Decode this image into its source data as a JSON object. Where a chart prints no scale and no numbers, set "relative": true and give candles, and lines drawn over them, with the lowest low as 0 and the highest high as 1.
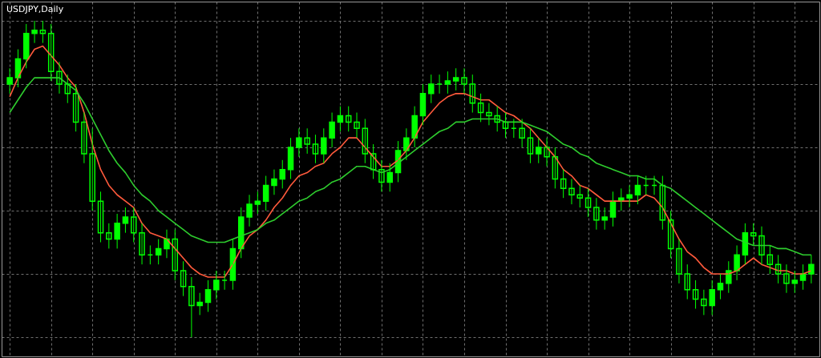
{
  "chart_data": {
    "type": "candlestick",
    "title": "USDJPY,Daily",
    "relative": true,
    "grid": true,
    "color": "#00ff00",
    "categories": [
      null,
      null,
      null,
      null,
      null,
      null,
      null,
      null,
      null,
      null,
      null,
      null,
      null,
      null,
      null,
      null,
      null,
      null,
      null,
      null,
      null,
      null,
      null,
      null,
      null,
      null,
      null,
      null,
      null,
      null,
      null,
      null,
      null,
      null,
      null,
      null,
      null,
      null,
      null,
      null,
      null,
      null,
      null,
      null,
      null,
      null,
      null,
      null,
      null,
      null,
      null,
      null,
      null,
      null,
      null,
      null,
      null,
      null,
      null,
      null,
      null,
      null,
      null,
      null,
      null,
      null,
      null,
      null,
      null,
      null,
      null,
      null,
      null,
      null,
      null,
      null,
      null,
      null,
      null,
      null,
      null,
      null,
      null,
      null,
      null,
      null,
      null,
      null,
      null,
      null,
      null,
      null,
      null,
      null,
      null,
      null,
      null,
      null
    ],
    "ohlc": [
      [
        0.8,
        0.85,
        0.77,
        0.82
      ],
      [
        0.82,
        0.91,
        0.79,
        0.88
      ],
      [
        0.88,
        0.99,
        0.85,
        0.96
      ],
      [
        0.96,
        1.0,
        0.93,
        0.97
      ],
      [
        0.97,
        1.0,
        0.93,
        0.96
      ],
      [
        0.96,
        0.99,
        0.81,
        0.84
      ],
      [
        0.84,
        0.87,
        0.77,
        0.8
      ],
      [
        0.8,
        0.83,
        0.74,
        0.77
      ],
      [
        0.77,
        0.8,
        0.65,
        0.68
      ],
      [
        0.68,
        0.71,
        0.55,
        0.58
      ],
      [
        0.58,
        0.66,
        0.4,
        0.43
      ],
      [
        0.43,
        0.46,
        0.3,
        0.33
      ],
      [
        0.33,
        0.36,
        0.28,
        0.31
      ],
      [
        0.31,
        0.39,
        0.28,
        0.36
      ],
      [
        0.36,
        0.41,
        0.33,
        0.38
      ],
      [
        0.38,
        0.41,
        0.3,
        0.33
      ],
      [
        0.33,
        0.36,
        0.23,
        0.26
      ],
      [
        0.26,
        0.29,
        0.23,
        0.26
      ],
      [
        0.26,
        0.31,
        0.23,
        0.28
      ],
      [
        0.28,
        0.34,
        0.25,
        0.31
      ],
      [
        0.31,
        0.34,
        0.18,
        0.21
      ],
      [
        0.21,
        0.24,
        0.13,
        0.16
      ],
      [
        0.16,
        0.19,
        0.0,
        0.1
      ],
      [
        0.1,
        0.14,
        0.07,
        0.11
      ],
      [
        0.11,
        0.18,
        0.08,
        0.15
      ],
      [
        0.15,
        0.21,
        0.12,
        0.18
      ],
      [
        0.18,
        0.21,
        0.15,
        0.18
      ],
      [
        0.18,
        0.31,
        0.15,
        0.28
      ],
      [
        0.28,
        0.41,
        0.25,
        0.38
      ],
      [
        0.38,
        0.45,
        0.35,
        0.42
      ],
      [
        0.42,
        0.46,
        0.39,
        0.43
      ],
      [
        0.43,
        0.51,
        0.4,
        0.48
      ],
      [
        0.48,
        0.53,
        0.45,
        0.5
      ],
      [
        0.5,
        0.56,
        0.47,
        0.53
      ],
      [
        0.53,
        0.63,
        0.5,
        0.6
      ],
      [
        0.6,
        0.66,
        0.57,
        0.63
      ],
      [
        0.63,
        0.66,
        0.58,
        0.61
      ],
      [
        0.61,
        0.64,
        0.55,
        0.58
      ],
      [
        0.58,
        0.66,
        0.55,
        0.63
      ],
      [
        0.63,
        0.71,
        0.6,
        0.68
      ],
      [
        0.68,
        0.73,
        0.65,
        0.7
      ],
      [
        0.7,
        0.73,
        0.65,
        0.68
      ],
      [
        0.68,
        0.71,
        0.63,
        0.66
      ],
      [
        0.66,
        0.69,
        0.55,
        0.58
      ],
      [
        0.58,
        0.61,
        0.5,
        0.53
      ],
      [
        0.53,
        0.56,
        0.46,
        0.49
      ],
      [
        0.49,
        0.55,
        0.46,
        0.52
      ],
      [
        0.52,
        0.62,
        0.49,
        0.59
      ],
      [
        0.59,
        0.66,
        0.56,
        0.63
      ],
      [
        0.63,
        0.73,
        0.6,
        0.7
      ],
      [
        0.7,
        0.8,
        0.67,
        0.77
      ],
      [
        0.77,
        0.83,
        0.74,
        0.8
      ],
      [
        0.8,
        0.83,
        0.77,
        0.8
      ],
      [
        0.8,
        0.84,
        0.77,
        0.81
      ],
      [
        0.81,
        0.85,
        0.78,
        0.82
      ],
      [
        0.82,
        0.85,
        0.77,
        0.8
      ],
      [
        0.8,
        0.83,
        0.71,
        0.74
      ],
      [
        0.74,
        0.77,
        0.68,
        0.71
      ],
      [
        0.71,
        0.74,
        0.67,
        0.7
      ],
      [
        0.7,
        0.73,
        0.65,
        0.68
      ],
      [
        0.68,
        0.71,
        0.63,
        0.66
      ],
      [
        0.66,
        0.69,
        0.63,
        0.66
      ],
      [
        0.66,
        0.69,
        0.6,
        0.63
      ],
      [
        0.63,
        0.66,
        0.55,
        0.58
      ],
      [
        0.58,
        0.63,
        0.55,
        0.6
      ],
      [
        0.6,
        0.63,
        0.54,
        0.57
      ],
      [
        0.57,
        0.6,
        0.47,
        0.5
      ],
      [
        0.5,
        0.53,
        0.44,
        0.47
      ],
      [
        0.47,
        0.5,
        0.42,
        0.45
      ],
      [
        0.45,
        0.48,
        0.41,
        0.44
      ],
      [
        0.44,
        0.47,
        0.38,
        0.41
      ],
      [
        0.41,
        0.44,
        0.34,
        0.37
      ],
      [
        0.37,
        0.41,
        0.34,
        0.38
      ],
      [
        0.38,
        0.46,
        0.35,
        0.43
      ],
      [
        0.43,
        0.47,
        0.4,
        0.44
      ],
      [
        0.44,
        0.48,
        0.41,
        0.45
      ],
      [
        0.45,
        0.51,
        0.42,
        0.48
      ],
      [
        0.48,
        0.51,
        0.45,
        0.48
      ],
      [
        0.48,
        0.51,
        0.45,
        0.48
      ],
      [
        0.48,
        0.51,
        0.34,
        0.37
      ],
      [
        0.37,
        0.4,
        0.25,
        0.28
      ],
      [
        0.28,
        0.31,
        0.17,
        0.2
      ],
      [
        0.2,
        0.23,
        0.12,
        0.15
      ],
      [
        0.15,
        0.18,
        0.09,
        0.12
      ],
      [
        0.12,
        0.15,
        0.07,
        0.1
      ],
      [
        0.1,
        0.18,
        0.07,
        0.15
      ],
      [
        0.15,
        0.2,
        0.12,
        0.17
      ],
      [
        0.17,
        0.24,
        0.14,
        0.21
      ],
      [
        0.21,
        0.29,
        0.18,
        0.26
      ],
      [
        0.26,
        0.36,
        0.23,
        0.33
      ],
      [
        0.33,
        0.36,
        0.29,
        0.32
      ],
      [
        0.32,
        0.35,
        0.23,
        0.26
      ],
      [
        0.26,
        0.29,
        0.2,
        0.23
      ],
      [
        0.23,
        0.26,
        0.17,
        0.2
      ],
      [
        0.2,
        0.23,
        0.14,
        0.17
      ],
      [
        0.17,
        0.21,
        0.14,
        0.18
      ],
      [
        0.18,
        0.23,
        0.15,
        0.2
      ],
      [
        0.2,
        0.26,
        0.17,
        0.23
      ]
    ],
    "series": [
      {
        "type": "line",
        "color": "#ff5a3c",
        "values": [
          0.76,
          0.82,
          0.87,
          0.91,
          0.92,
          0.89,
          0.86,
          0.82,
          0.79,
          0.71,
          0.61,
          0.53,
          0.48,
          0.45,
          0.43,
          0.41,
          0.36,
          0.33,
          0.32,
          0.31,
          0.28,
          0.25,
          0.22,
          0.2,
          0.19,
          0.19,
          0.19,
          0.23,
          0.28,
          0.32,
          0.34,
          0.37,
          0.41,
          0.44,
          0.48,
          0.51,
          0.52,
          0.54,
          0.55,
          0.58,
          0.6,
          0.63,
          0.63,
          0.6,
          0.57,
          0.54,
          0.54,
          0.56,
          0.59,
          0.63,
          0.68,
          0.71,
          0.74,
          0.76,
          0.77,
          0.77,
          0.76,
          0.75,
          0.75,
          0.73,
          0.71,
          0.7,
          0.68,
          0.66,
          0.63,
          0.6,
          0.57,
          0.53,
          0.51,
          0.48,
          0.47,
          0.45,
          0.43,
          0.43,
          0.43,
          0.43,
          0.43,
          0.45,
          0.44,
          0.41,
          0.36,
          0.31,
          0.27,
          0.25,
          0.22,
          0.2,
          0.2,
          0.2,
          0.21,
          0.23,
          0.25,
          0.23,
          0.22,
          0.21,
          0.21,
          0.2,
          0.2,
          0.21
        ]
      },
      {
        "type": "line",
        "color": "#2ecc2e",
        "values": [
          0.71,
          0.75,
          0.79,
          0.82,
          0.82,
          0.82,
          0.82,
          0.8,
          0.78,
          0.74,
          0.69,
          0.64,
          0.59,
          0.55,
          0.52,
          0.48,
          0.45,
          0.43,
          0.4,
          0.38,
          0.36,
          0.34,
          0.32,
          0.31,
          0.3,
          0.3,
          0.3,
          0.31,
          0.32,
          0.33,
          0.34,
          0.36,
          0.37,
          0.39,
          0.41,
          0.43,
          0.44,
          0.46,
          0.47,
          0.49,
          0.5,
          0.52,
          0.54,
          0.54,
          0.53,
          0.52,
          0.53,
          0.55,
          0.57,
          0.59,
          0.61,
          0.63,
          0.65,
          0.66,
          0.68,
          0.68,
          0.69,
          0.69,
          0.69,
          0.69,
          0.68,
          0.68,
          0.68,
          0.67,
          0.66,
          0.65,
          0.63,
          0.61,
          0.6,
          0.58,
          0.57,
          0.55,
          0.54,
          0.53,
          0.52,
          0.51,
          0.51,
          0.5,
          0.5,
          0.48,
          0.47,
          0.45,
          0.43,
          0.41,
          0.39,
          0.37,
          0.35,
          0.33,
          0.31,
          0.3,
          0.29,
          0.29,
          0.29,
          0.28,
          0.28,
          0.27,
          0.26,
          0.26
        ]
      }
    ]
  }
}
